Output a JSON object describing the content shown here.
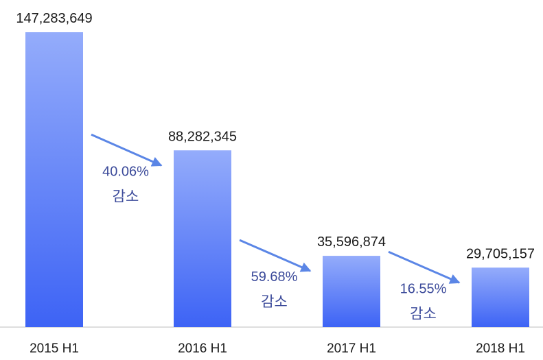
{
  "chart_data": {
    "type": "bar",
    "categories": [
      "2015 H1",
      "2016 H1",
      "2017 H1",
      "2018 H1"
    ],
    "values": [
      147283649,
      88282345,
      35596874,
      29705157
    ],
    "value_labels": [
      "147,283,649",
      "88,282,345",
      "35,596,874",
      "29,705,157"
    ],
    "ylim": [
      0,
      147283649
    ],
    "grid": false,
    "bar_color_top": "#94acfb",
    "bar_color_bottom": "#3d63f5",
    "arrow_color": "#5b86e6",
    "annotations": [
      {
        "from": "2015 H1",
        "to": "2016 H1",
        "percent": "40.06%",
        "text": "감소"
      },
      {
        "from": "2016 H1",
        "to": "2017 H1",
        "percent": "59.68%",
        "text": "감소"
      },
      {
        "from": "2017 H1",
        "to": "2018 H1",
        "percent": "16.55%",
        "text": "감소"
      }
    ]
  }
}
